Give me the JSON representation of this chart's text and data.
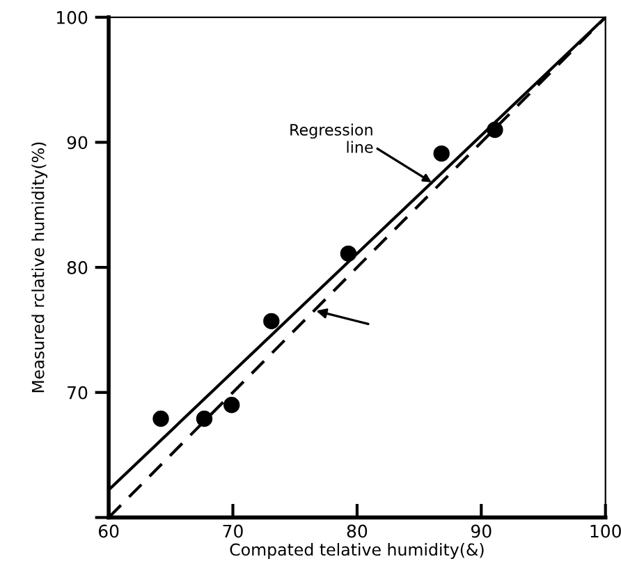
{
  "chart_data": {
    "type": "scatter",
    "xlabel": "Compated telative humidity(&)",
    "ylabel": "Measured rclative humidity(%)",
    "xlim": [
      60,
      100
    ],
    "ylim": [
      60,
      100
    ],
    "xticks": [
      60,
      70,
      80,
      90,
      100
    ],
    "yticks": [
      {
        "value": 60,
        "label": null
      },
      70,
      80,
      90,
      100
    ],
    "grid": false,
    "legend": false,
    "annotations": [
      {
        "text": "Regression\nline",
        "x": 86.0,
        "y": 86.8
      }
    ],
    "series": [
      {
        "color": "#000000",
        "marker": "circle",
        "x": [
          64.2,
          67.7,
          69.9,
          73.1,
          79.3,
          86.8,
          91.1
        ],
        "values": [
          67.9,
          67.9,
          69.0,
          75.7,
          81.1,
          89.1,
          91.0
        ]
      },
      {
        "type": "line",
        "color": "#000000",
        "line_style": "solid",
        "marker": "none",
        "x": [
          60,
          100
        ],
        "values": [
          62.2,
          100
        ]
      },
      {
        "type": "line",
        "color": "#000000",
        "line_style": "dashed",
        "marker": "none",
        "x": [
          60,
          100
        ],
        "values": [
          60,
          100
        ]
      }
    ]
  }
}
